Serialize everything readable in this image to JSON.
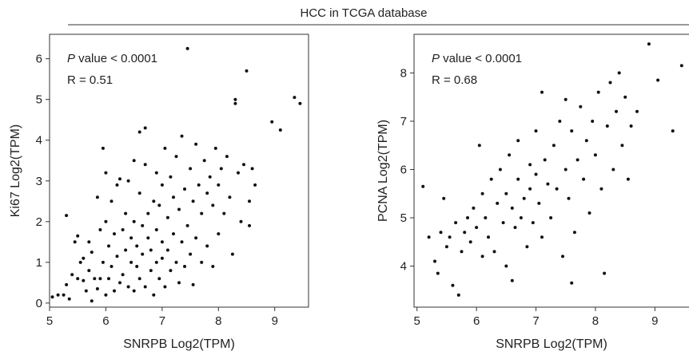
{
  "header": {
    "title": "HCC in TCGA database"
  },
  "colors": {
    "point": "#111111",
    "axis": "#333333",
    "text": "#222222"
  },
  "chart_data": [
    {
      "type": "scatter",
      "xlabel": "SNRPB Log2(TPM)",
      "ylabel": "Ki67 Log2(TPM)",
      "xlim": [
        5,
        9.6
      ],
      "ylim": [
        -0.1,
        6.6
      ],
      "xticks": [
        5,
        6,
        7,
        8,
        9
      ],
      "yticks": [
        0,
        1,
        2,
        3,
        4,
        5,
        6
      ],
      "annotation": {
        "p_italic": "P",
        "p_text": " value < 0.0001",
        "r_text": "R = 0.51"
      },
      "points": [
        [
          5.05,
          0.15
        ],
        [
          5.15,
          0.2
        ],
        [
          5.25,
          0.2
        ],
        [
          5.3,
          0.45
        ],
        [
          5.3,
          2.15
        ],
        [
          5.35,
          0.1
        ],
        [
          5.4,
          0.7
        ],
        [
          5.45,
          1.5
        ],
        [
          5.5,
          1.65
        ],
        [
          5.5,
          0.6
        ],
        [
          5.55,
          1.0
        ],
        [
          5.6,
          0.55
        ],
        [
          5.6,
          1.1
        ],
        [
          5.65,
          0.3
        ],
        [
          5.7,
          0.8
        ],
        [
          5.7,
          1.5
        ],
        [
          5.75,
          0.05
        ],
        [
          5.75,
          1.25
        ],
        [
          5.8,
          0.6
        ],
        [
          5.85,
          0.35
        ],
        [
          5.85,
          2.6
        ],
        [
          5.9,
          0.6
        ],
        [
          5.9,
          1.8
        ],
        [
          5.95,
          1.0
        ],
        [
          5.95,
          3.8
        ],
        [
          6.0,
          0.2
        ],
        [
          6.0,
          2.0
        ],
        [
          6.0,
          3.2
        ],
        [
          6.05,
          0.6
        ],
        [
          6.05,
          1.4
        ],
        [
          6.1,
          0.9
        ],
        [
          6.1,
          2.5
        ],
        [
          6.15,
          1.7
        ],
        [
          6.15,
          0.3
        ],
        [
          6.2,
          1.15
        ],
        [
          6.2,
          2.9
        ],
        [
          6.25,
          0.5
        ],
        [
          6.25,
          3.05
        ],
        [
          6.3,
          1.8
        ],
        [
          6.3,
          0.7
        ],
        [
          6.35,
          1.3
        ],
        [
          6.35,
          2.2
        ],
        [
          6.4,
          0.4
        ],
        [
          6.4,
          3.0
        ],
        [
          6.45,
          1.0
        ],
        [
          6.45,
          1.6
        ],
        [
          6.5,
          0.3
        ],
        [
          6.5,
          2.0
        ],
        [
          6.5,
          3.5
        ],
        [
          6.55,
          0.9
        ],
        [
          6.55,
          1.4
        ],
        [
          6.6,
          0.6
        ],
        [
          6.6,
          2.7
        ],
        [
          6.6,
          4.2
        ],
        [
          6.65,
          1.2
        ],
        [
          6.65,
          1.9
        ],
        [
          6.7,
          0.4
        ],
        [
          6.7,
          3.4
        ],
        [
          6.7,
          4.3
        ],
        [
          6.75,
          1.6
        ],
        [
          6.75,
          2.2
        ],
        [
          6.8,
          0.8
        ],
        [
          6.8,
          1.3
        ],
        [
          6.85,
          2.5
        ],
        [
          6.85,
          0.2
        ],
        [
          6.9,
          1.0
        ],
        [
          6.9,
          1.8
        ],
        [
          6.9,
          3.2
        ],
        [
          6.95,
          0.6
        ],
        [
          6.95,
          2.4
        ],
        [
          7.0,
          1.1
        ],
        [
          7.0,
          1.5
        ],
        [
          7.0,
          2.9
        ],
        [
          7.05,
          0.4
        ],
        [
          7.05,
          3.8
        ],
        [
          7.1,
          1.3
        ],
        [
          7.1,
          2.1
        ],
        [
          7.15,
          0.8
        ],
        [
          7.15,
          3.1
        ],
        [
          7.2,
          1.7
        ],
        [
          7.2,
          2.6
        ],
        [
          7.25,
          1.0
        ],
        [
          7.25,
          3.6
        ],
        [
          7.3,
          0.5
        ],
        [
          7.3,
          2.3
        ],
        [
          7.35,
          1.5
        ],
        [
          7.35,
          4.1
        ],
        [
          7.4,
          0.9
        ],
        [
          7.4,
          2.8
        ],
        [
          7.45,
          6.25
        ],
        [
          7.45,
          1.9
        ],
        [
          7.5,
          1.2
        ],
        [
          7.5,
          3.3
        ],
        [
          7.55,
          0.45
        ],
        [
          7.55,
          2.5
        ],
        [
          7.6,
          1.6
        ],
        [
          7.6,
          3.9
        ],
        [
          7.65,
          2.9
        ],
        [
          7.7,
          1.0
        ],
        [
          7.7,
          2.2
        ],
        [
          7.75,
          3.5
        ],
        [
          7.8,
          1.4
        ],
        [
          7.8,
          2.7
        ],
        [
          7.85,
          3.1
        ],
        [
          7.9,
          0.9
        ],
        [
          7.9,
          2.4
        ],
        [
          7.95,
          3.8
        ],
        [
          8.0,
          1.7
        ],
        [
          8.0,
          2.9
        ],
        [
          8.05,
          3.3
        ],
        [
          8.1,
          2.2
        ],
        [
          8.15,
          3.6
        ],
        [
          8.2,
          2.6
        ],
        [
          8.25,
          1.2
        ],
        [
          8.3,
          4.9
        ],
        [
          8.3,
          5.0
        ],
        [
          8.35,
          3.2
        ],
        [
          8.4,
          2.0
        ],
        [
          8.45,
          3.4
        ],
        [
          8.5,
          5.7
        ],
        [
          8.55,
          1.9
        ],
        [
          8.55,
          2.5
        ],
        [
          8.6,
          3.3
        ],
        [
          8.65,
          2.9
        ],
        [
          8.95,
          4.45
        ],
        [
          9.1,
          4.25
        ],
        [
          9.35,
          5.05
        ],
        [
          9.45,
          4.9
        ]
      ]
    },
    {
      "type": "scatter",
      "xlabel": "SNRPB Log2(TPM)",
      "ylabel": "PCNA Log2(TPM)",
      "xlim": [
        4.95,
        9.6
      ],
      "ylim": [
        3.15,
        8.8
      ],
      "xticks": [
        5,
        6,
        7,
        8,
        9
      ],
      "yticks": [
        4,
        5,
        6,
        7,
        8
      ],
      "annotation": {
        "p_italic": "P",
        "p_text": " value < 0.0001",
        "r_text": "R = 0.68"
      },
      "points": [
        [
          5.1,
          5.65
        ],
        [
          5.2,
          4.6
        ],
        [
          5.3,
          4.1
        ],
        [
          5.35,
          3.85
        ],
        [
          5.4,
          4.7
        ],
        [
          5.45,
          5.4
        ],
        [
          5.5,
          4.4
        ],
        [
          5.55,
          4.6
        ],
        [
          5.6,
          3.6
        ],
        [
          5.65,
          4.9
        ],
        [
          5.7,
          3.4
        ],
        [
          5.75,
          4.3
        ],
        [
          5.8,
          4.7
        ],
        [
          5.85,
          5.0
        ],
        [
          5.9,
          4.5
        ],
        [
          5.95,
          5.2
        ],
        [
          6.0,
          4.8
        ],
        [
          6.05,
          6.5
        ],
        [
          6.1,
          4.2
        ],
        [
          6.1,
          5.5
        ],
        [
          6.15,
          5.0
        ],
        [
          6.2,
          4.6
        ],
        [
          6.25,
          5.8
        ],
        [
          6.3,
          4.3
        ],
        [
          6.35,
          5.3
        ],
        [
          6.4,
          6.0
        ],
        [
          6.45,
          4.9
        ],
        [
          6.5,
          5.5
        ],
        [
          6.5,
          4.0
        ],
        [
          6.55,
          6.3
        ],
        [
          6.6,
          5.2
        ],
        [
          6.6,
          3.7
        ],
        [
          6.65,
          4.8
        ],
        [
          6.7,
          5.8
        ],
        [
          6.7,
          6.6
        ],
        [
          6.75,
          5.0
        ],
        [
          6.8,
          5.4
        ],
        [
          6.85,
          4.4
        ],
        [
          6.9,
          6.1
        ],
        [
          6.9,
          5.6
        ],
        [
          6.95,
          4.9
        ],
        [
          7.0,
          5.9
        ],
        [
          7.0,
          6.8
        ],
        [
          7.05,
          5.3
        ],
        [
          7.1,
          4.6
        ],
        [
          7.1,
          7.6
        ],
        [
          7.15,
          6.2
        ],
        [
          7.2,
          5.7
        ],
        [
          7.25,
          5.0
        ],
        [
          7.3,
          6.5
        ],
        [
          7.35,
          5.6
        ],
        [
          7.4,
          7.0
        ],
        [
          7.45,
          4.2
        ],
        [
          7.5,
          7.45
        ],
        [
          7.5,
          6.0
        ],
        [
          7.55,
          5.4
        ],
        [
          7.6,
          3.65
        ],
        [
          7.6,
          6.8
        ],
        [
          7.65,
          4.7
        ],
        [
          7.7,
          6.2
        ],
        [
          7.75,
          7.3
        ],
        [
          7.8,
          5.8
        ],
        [
          7.85,
          6.6
        ],
        [
          7.9,
          5.1
        ],
        [
          7.95,
          7.0
        ],
        [
          8.0,
          6.3
        ],
        [
          8.05,
          7.6
        ],
        [
          8.1,
          5.6
        ],
        [
          8.15,
          3.85
        ],
        [
          8.2,
          6.9
        ],
        [
          8.25,
          7.8
        ],
        [
          8.3,
          6.0
        ],
        [
          8.35,
          7.2
        ],
        [
          8.4,
          8.0
        ],
        [
          8.45,
          6.5
        ],
        [
          8.5,
          7.5
        ],
        [
          8.55,
          5.8
        ],
        [
          8.6,
          6.9
        ],
        [
          8.7,
          7.2
        ],
        [
          8.9,
          8.6
        ],
        [
          9.05,
          7.85
        ],
        [
          9.3,
          6.8
        ],
        [
          9.45,
          8.15
        ]
      ]
    }
  ]
}
